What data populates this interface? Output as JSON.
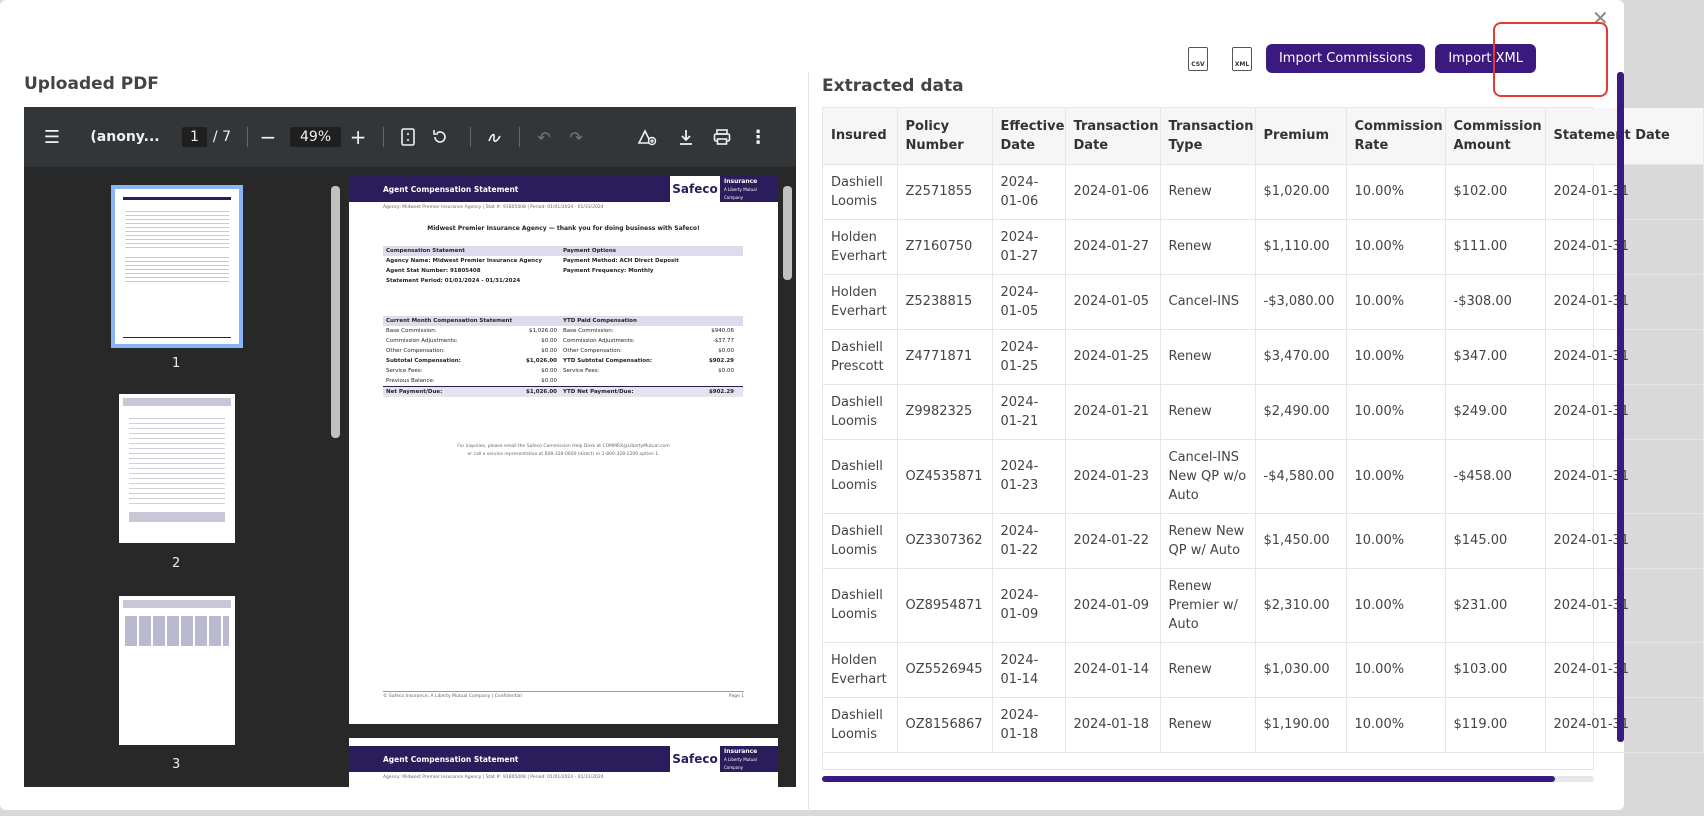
{
  "left_title": "Uploaded PDF",
  "right_title": "Extracted data",
  "pdf_toolbar": {
    "file_name": "(anony...",
    "page_current": "1",
    "page_total": "/ 7",
    "zoom": "49%"
  },
  "thumbnails": [
    {
      "num": "1"
    },
    {
      "num": "2"
    },
    {
      "num": "3"
    }
  ],
  "pdf_page": {
    "title": "Agent Compensation Statement",
    "brand": "Safeco",
    "brand_tag": "Insurance",
    "brand_sub": "A Liberty Mutual Company",
    "agency_line": "Agency: Midwest Premier Insurance Agency  |  Stat #: 91805408  |  Period: 01/01/2024 - 01/31/2024",
    "thanks": "Midwest Premier Insurance Agency — thank you for doing business with Safeco!",
    "comp_header": "Compensation Statement",
    "payment_header": "Payment Options",
    "agency_name": "Agency Name: Midwest Premier Insurance Agency",
    "payment_method": "Payment Method: ACH Direct Deposit",
    "stat_number": "Agent Stat Number: 91805408",
    "payment_frequency": "Payment Frequency: Monthly",
    "statement_period": "Statement Period: 01/01/2024 - 01/31/2024",
    "current_header": "Current Month Compensation Statement",
    "ytd_header": "YTD Paid Compensation",
    "rows": [
      {
        "l": "Base Commission:",
        "lv": "$1,026.00",
        "r": "Base Commission:",
        "rv": "$940.06"
      },
      {
        "l": "Commission Adjustments:",
        "lv": "$0.00",
        "r": "Commission Adjustments:",
        "rv": "-$37.77"
      },
      {
        "l": "Other Compensation:",
        "lv": "$0.00",
        "r": "Other Compensation:",
        "rv": "$0.00"
      },
      {
        "l": "Subtotal Compensation:",
        "lv": "$1,026.00",
        "r": "YTD Subtotal Compensation:",
        "rv": "$902.29"
      },
      {
        "l": "Service Fees:",
        "lv": "$0.00",
        "r": "Service Fees:",
        "rv": "$0.00"
      },
      {
        "l": "Previous Balance:",
        "lv": "$0.00",
        "r": "",
        "rv": ""
      },
      {
        "l": "Net Payment/Due:",
        "lv": "$1,026.00",
        "r": "YTD Net Payment/Due:",
        "rv": "$902.29"
      }
    ],
    "footer_note": "For inquiries, please email the Safeco Commission Help Desk at COMMRX@LibertyMutual.com",
    "footer_note2": "or call a service representative at 608-328-0600 (direct) or 1-800-328-2200 option 1.",
    "page_footer_left": "© Safeco Insurance, A Liberty Mutual Company  |  Confidential",
    "page_footer_right": "Page 1"
  },
  "actions": {
    "csv_label": "CSV",
    "xml_label": "XML",
    "import_commissions": "Import Commissions",
    "import_xml": "Import XML"
  },
  "table": {
    "headers": [
      "Insured",
      "Policy Number",
      "Effective Date",
      "Transaction Date",
      "Transaction Type",
      "Premium",
      "Commission Rate",
      "Commission Amount",
      "Statement Date"
    ],
    "rows": [
      [
        "Dashiell Loomis",
        "Z2571855",
        "2024-01-06",
        "2024-01-06",
        "Renew",
        "$1,020.00",
        "10.00%",
        "$102.00",
        "2024-01-31"
      ],
      [
        "Holden Everhart",
        "Z7160750",
        "2024-01-27",
        "2024-01-27",
        "Renew",
        "$1,110.00",
        "10.00%",
        "$111.00",
        "2024-01-31"
      ],
      [
        "Holden Everhart",
        "Z5238815",
        "2024-01-05",
        "2024-01-05",
        "Cancel-INS",
        "-$3,080.00",
        "10.00%",
        "-$308.00",
        "2024-01-31"
      ],
      [
        "Dashiell Prescott",
        "Z4771871",
        "2024-01-25",
        "2024-01-25",
        "Renew",
        "$3,470.00",
        "10.00%",
        "$347.00",
        "2024-01-31"
      ],
      [
        "Dashiell Loomis",
        "Z9982325",
        "2024-01-21",
        "2024-01-21",
        "Renew",
        "$2,490.00",
        "10.00%",
        "$249.00",
        "2024-01-31"
      ],
      [
        "Dashiell Loomis",
        "OZ4535871",
        "2024-01-23",
        "2024-01-23",
        "Cancel-INS New QP w/o Auto",
        "-$4,580.00",
        "10.00%",
        "-$458.00",
        "2024-01-31"
      ],
      [
        "Dashiell Loomis",
        "OZ3307362",
        "2024-01-22",
        "2024-01-22",
        "Renew New QP w/ Auto",
        "$1,450.00",
        "10.00%",
        "$145.00",
        "2024-01-31"
      ],
      [
        "Dashiell Loomis",
        "OZ8954871",
        "2024-01-09",
        "2024-01-09",
        "Renew Premier w/ Auto",
        "$2,310.00",
        "10.00%",
        "$231.00",
        "2024-01-31"
      ],
      [
        "Holden Everhart",
        "OZ5526945",
        "2024-01-14",
        "2024-01-14",
        "Renew",
        "$1,030.00",
        "10.00%",
        "$103.00",
        "2024-01-31"
      ],
      [
        "Dashiell Loomis",
        "OZ8156867",
        "2024-01-18",
        "2024-01-18",
        "Renew",
        "$1,190.00",
        "10.00%",
        "$119.00",
        "2024-01-31"
      ]
    ]
  },
  "scroll": {
    "horizontal_position": 0.95
  }
}
